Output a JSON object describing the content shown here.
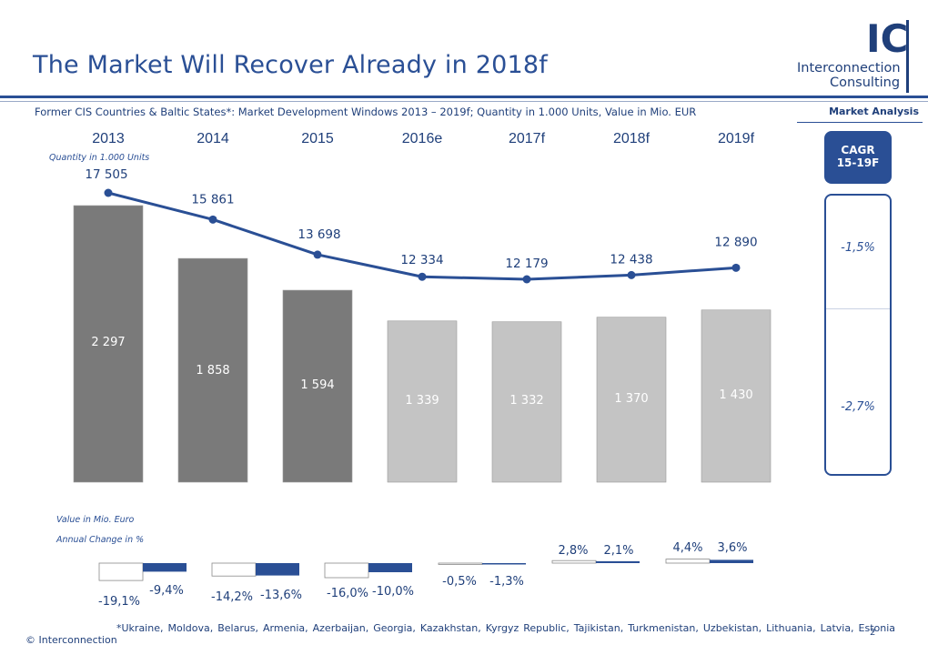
{
  "header": {
    "title": "The Market Will Recover Already in 2018f",
    "subtitle": "Former CIS Countries & Baltic States*: Market Development Windows 2013 – 2019f; Quantity in 1.000 Units, Value in Mio. EUR",
    "section_tag": "Market Analysis"
  },
  "logo": {
    "mark": "IC",
    "line1": "Interconnection",
    "line2": "Consulting"
  },
  "cagr": {
    "title_line1": "CAGR",
    "title_line2": "15-19F",
    "quantity_value": "-1,5%",
    "value_value": "-2,7%"
  },
  "labels": {
    "quantity_label": "Quantity in 1.000 Units",
    "value_label": "Value in Mio. Euro",
    "change_label": "Annual Change in %"
  },
  "footer": {
    "footnote": "*Ukraine, Moldova, Belarus, Armenia, Azerbaijan, Georgia, Kazakhstan, Kyrgyz Republic, Tajikistan, Turkmenistan, Uzbekistan, Lithuania, Latvia, Estonia",
    "copyright": "© Interconnection",
    "page": "2"
  },
  "colors": {
    "accent": "#2a4f95",
    "bar_actual": "#7a7a7a",
    "bar_forecast": "#c4c4c4",
    "line": "#2a4f95"
  },
  "chart_data": [
    {
      "type": "bar",
      "categories": [
        "2013",
        "2014",
        "2015",
        "2016e",
        "2017f",
        "2018f",
        "2019f"
      ],
      "ylabel": "Value in Mio. Euro",
      "values": [
        2297,
        1858,
        1594,
        1339,
        1332,
        1370,
        1430
      ],
      "value_labels": [
        "2 297",
        "1 858",
        "1 594",
        "1 339",
        "1 332",
        "1 370",
        "1 430"
      ],
      "bar_status": [
        "actual",
        "actual",
        "actual",
        "forecast",
        "forecast",
        "forecast",
        "forecast"
      ]
    },
    {
      "type": "line",
      "categories": [
        "2013",
        "2014",
        "2015",
        "2016e",
        "2017f",
        "2018f",
        "2019f"
      ],
      "ylabel": "Quantity in 1.000 Units",
      "values": [
        17505,
        15861,
        13698,
        12334,
        12179,
        12438,
        12890
      ],
      "value_labels": [
        "17 505",
        "15 861",
        "13 698",
        "12 334",
        "12 179",
        "12 438",
        "12 890"
      ]
    },
    {
      "type": "bar",
      "title": "Annual Change in %",
      "categories": [
        "2014",
        "2015",
        "2016e",
        "2017f",
        "2018f",
        "2019f"
      ],
      "series": [
        {
          "values": [
            -19.1,
            -14.2,
            -16.0,
            -0.5,
            2.8,
            4.4
          ],
          "labels": [
            "-19,1%",
            "-14,2%",
            "-16,0%",
            "-0,5%",
            "2,8%",
            "4,4%"
          ]
        },
        {
          "values": [
            -9.4,
            -13.6,
            -10.0,
            -1.3,
            2.1,
            3.6
          ],
          "labels": [
            "-9,4%",
            "-13,6%",
            "-10,0%",
            "-1,3%",
            "2,1%",
            "3,6%"
          ]
        }
      ]
    }
  ]
}
